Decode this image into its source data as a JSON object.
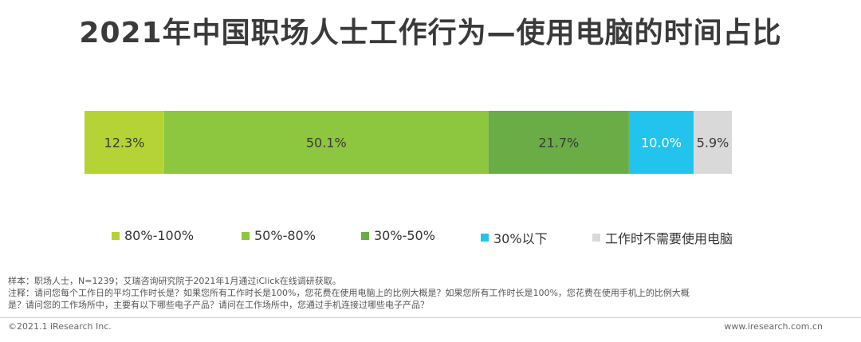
{
  "title": "2021年中国职场人士工作行为—使用电脑的时间占比",
  "chart_data": {
    "type": "bar",
    "orientation": "horizontal-stacked-100",
    "title": "2021年中国职场人士工作行为—使用电脑的时间占比",
    "series": [
      {
        "name": "80%-100%",
        "value": 12.3,
        "label": "12.3%",
        "color": "#b5d335"
      },
      {
        "name": "50%-80%",
        "value": 50.1,
        "label": "50.1%",
        "color": "#8dc63f"
      },
      {
        "name": "30%-50%",
        "value": 21.7,
        "label": "21.7%",
        "color": "#6aac45"
      },
      {
        "name": "30%以下",
        "value": 10.0,
        "label": "10.0%",
        "color": "#22c4ee"
      },
      {
        "name": "工作时不需要使用电脑",
        "value": 5.9,
        "label": "5.9%",
        "color": "#d9d9d9"
      }
    ],
    "legend_position": "bottom",
    "grid": false
  },
  "notes": {
    "sample": "样本：职场人士，N=1239；艾瑞咨询研究院于2021年1月通过iClick在线调研获取。",
    "note_line1": "注释：请问您每个工作日的平均工作时长是？如果您所有工作时长是100%，您花费在使用电脑上的比例大概是？如果您所有工作时长是100%，您花费在使用手机上的比例大概",
    "note_line2": "是？请问您的工作场所中，主要有以下哪些电子产品？请问在工作场所中，您通过手机连接过哪些电子产品？"
  },
  "footer": {
    "copyright": "©2021.1 iResearch Inc.",
    "website": "www.iresearch.com.cn"
  }
}
